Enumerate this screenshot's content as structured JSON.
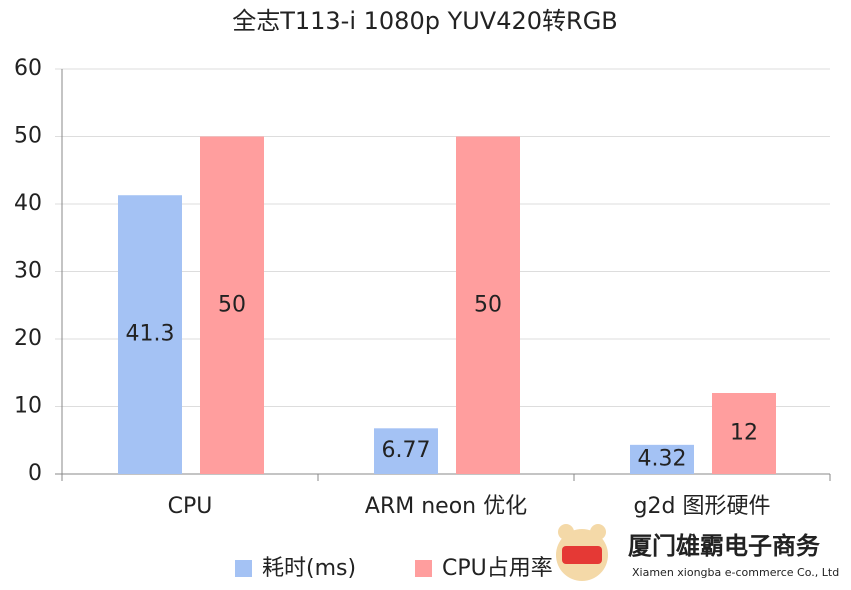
{
  "chart_data": {
    "type": "bar",
    "title": "全志T113-i 1080p YUV420转RGB",
    "categories": [
      "CPU",
      "ARM neon 优化",
      "g2d 图形硬件"
    ],
    "series": [
      {
        "name": "耗时(ms)",
        "color": "#a4c2f4",
        "values": [
          41.3,
          6.77,
          4.32
        ]
      },
      {
        "name": "CPU占用率",
        "color": "#ff9e9e",
        "values": [
          50,
          50,
          12
        ]
      }
    ],
    "ylim": [
      0,
      60
    ],
    "yticks": [
      0,
      10,
      20,
      30,
      40,
      50,
      60
    ],
    "grid": true,
    "legend": "bottom"
  },
  "watermark": {
    "name": "厦门雄霸电子商务",
    "subtitle": "Xiamen xiongba e-commerce Co., Ltd"
  }
}
